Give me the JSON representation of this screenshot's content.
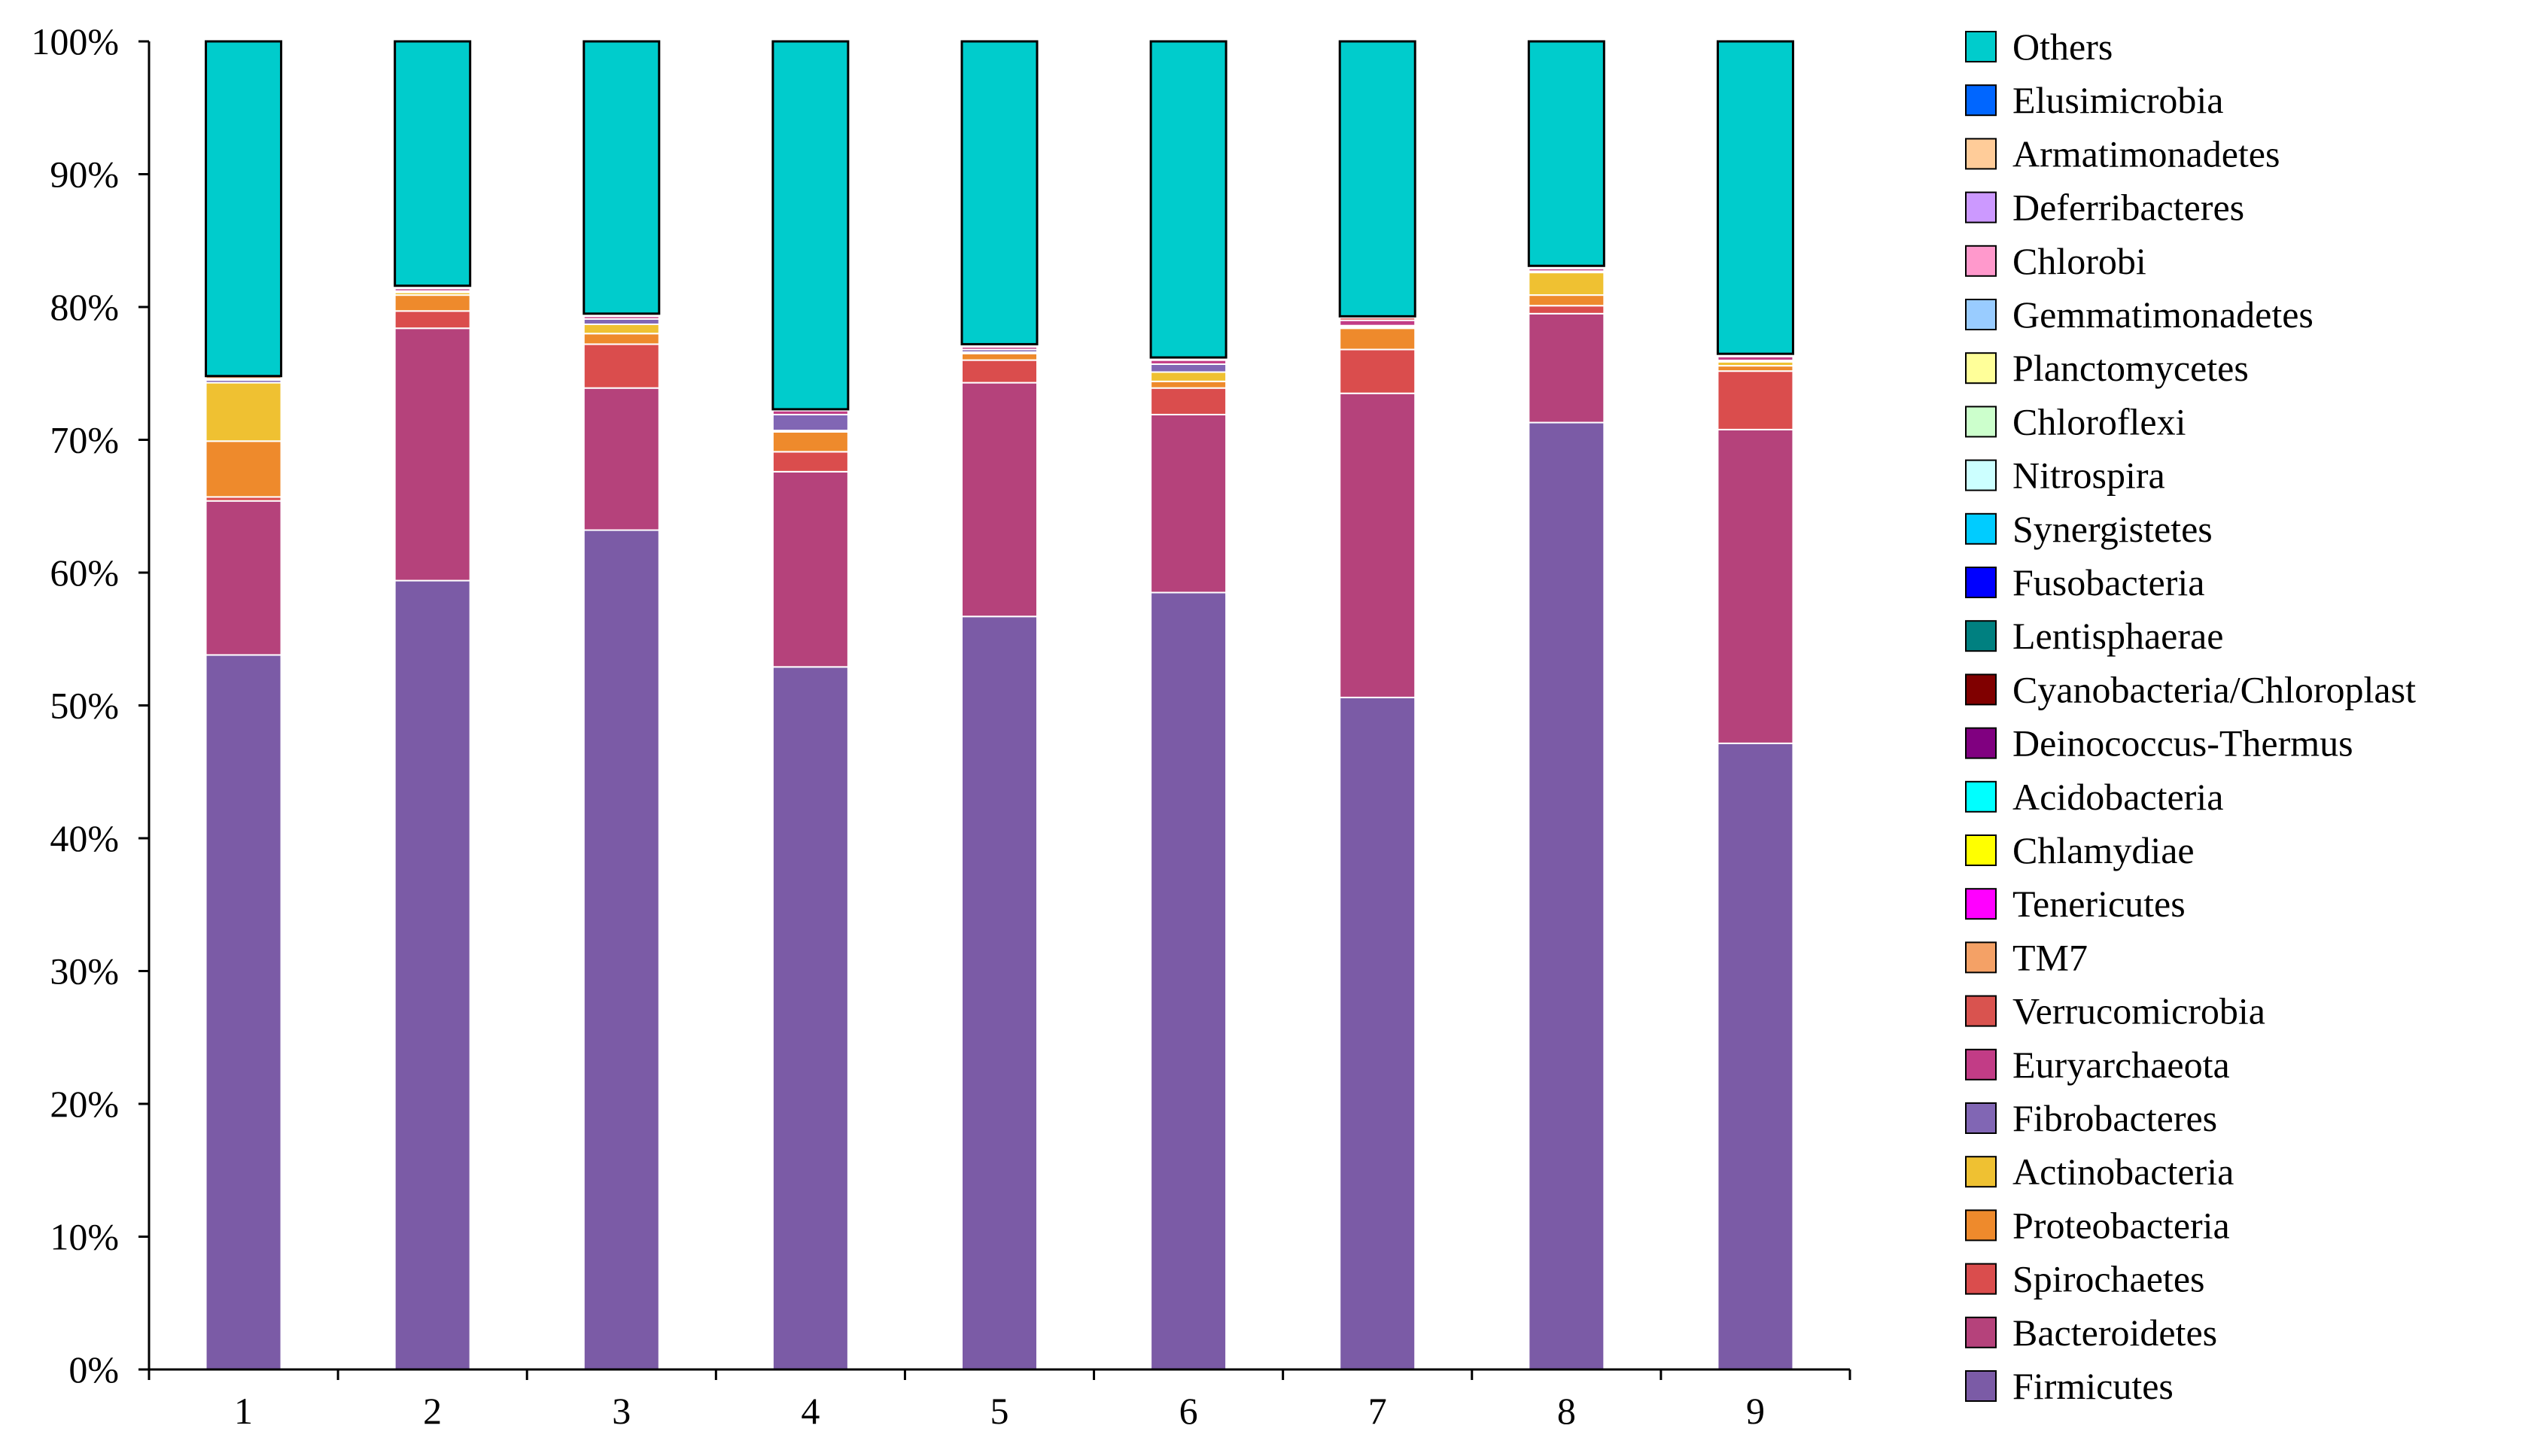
{
  "chart_data": {
    "type": "bar",
    "stacked": true,
    "normalized": true,
    "title": "",
    "xlabel": "",
    "ylabel": "",
    "ylim": [
      0,
      100
    ],
    "y_ticks": [
      "0%",
      "10%",
      "20%",
      "30%",
      "40%",
      "50%",
      "60%",
      "70%",
      "80%",
      "90%",
      "100%"
    ],
    "y_tick_values": [
      0,
      10,
      20,
      30,
      40,
      50,
      60,
      70,
      80,
      90,
      100
    ],
    "categories": [
      "1",
      "2",
      "3",
      "4",
      "5",
      "6",
      "7",
      "8",
      "9"
    ],
    "legend_position": "right",
    "series": [
      {
        "name": "Firmicutes",
        "color": "#7B5BA6",
        "values": [
          53.8,
          59.4,
          63.2,
          52.9,
          56.7,
          58.5,
          50.6,
          71.3,
          47.1
        ]
      },
      {
        "name": "Bacteroidetes",
        "color": "#B5427B",
        "values": [
          11.6,
          19.0,
          10.7,
          14.7,
          17.6,
          13.4,
          22.9,
          8.2,
          23.6
        ]
      },
      {
        "name": "Spirochaetes",
        "color": "#DA4D4D",
        "values": [
          0.3,
          1.3,
          3.3,
          1.5,
          1.7,
          2.0,
          3.3,
          0.6,
          4.4
        ]
      },
      {
        "name": "Proteobacteria",
        "color": "#EE8A2C",
        "values": [
          4.2,
          1.2,
          0.8,
          1.5,
          0.5,
          0.5,
          1.6,
          0.8,
          0.4
        ]
      },
      {
        "name": "Actinobacteria",
        "color": "#EFC132",
        "values": [
          4.4,
          0.2,
          0.7,
          0.1,
          0.1,
          0.7,
          0.1,
          1.7,
          0.3
        ]
      },
      {
        "name": "Fibrobacteres",
        "color": "#8166B4",
        "values": [
          0.2,
          0.1,
          0.4,
          1.2,
          0.2,
          0.6,
          0.1,
          0.1,
          0.1
        ]
      },
      {
        "name": "Euryarchaeota",
        "color": "#C23C86",
        "values": [
          0.1,
          0.2,
          0.2,
          0.3,
          0.2,
          0.3,
          0.4,
          0.2,
          0.3
        ]
      },
      {
        "name": "Verrucomicrobia",
        "color": "#D9534F",
        "values": [
          0.0,
          0.1,
          0.1,
          0.0,
          0.1,
          0.1,
          0.2,
          0.1,
          0.1
        ]
      },
      {
        "name": "TM7",
        "color": "#F4A166",
        "values": [
          0.2,
          0.1,
          0.1,
          0.1,
          0.1,
          0.1,
          0.1,
          0.1,
          0.1
        ]
      },
      {
        "name": "Tenericutes",
        "color": "#FF00FF",
        "values": [
          0.0,
          0.0,
          0.0,
          0.0,
          0.0,
          0.0,
          0.0,
          0.0,
          0.0
        ]
      },
      {
        "name": "Chlamydiae",
        "color": "#FFFF00",
        "values": [
          0.0,
          0.0,
          0.0,
          0.0,
          0.0,
          0.0,
          0.0,
          0.0,
          0.0
        ]
      },
      {
        "name": "Acidobacteria",
        "color": "#00FFFF",
        "values": [
          0.0,
          0.0,
          0.0,
          0.0,
          0.0,
          0.0,
          0.0,
          0.0,
          0.0
        ]
      },
      {
        "name": "Deinococcus-Thermus",
        "color": "#800080",
        "values": [
          0.0,
          0.0,
          0.0,
          0.0,
          0.0,
          0.0,
          0.0,
          0.0,
          0.0
        ]
      },
      {
        "name": "Cyanobacteria/Chloroplast",
        "color": "#800000",
        "values": [
          0.0,
          0.0,
          0.0,
          0.0,
          0.0,
          0.0,
          0.0,
          0.0,
          0.0
        ]
      },
      {
        "name": "Lentisphaerae",
        "color": "#008080",
        "values": [
          0.0,
          0.0,
          0.0,
          0.0,
          0.0,
          0.0,
          0.0,
          0.0,
          0.0
        ]
      },
      {
        "name": "Fusobacteria",
        "color": "#0000FF",
        "values": [
          0.0,
          0.0,
          0.0,
          0.0,
          0.0,
          0.0,
          0.0,
          0.0,
          0.0
        ]
      },
      {
        "name": "Synergistetes",
        "color": "#00CCFF",
        "values": [
          0.0,
          0.0,
          0.0,
          0.0,
          0.0,
          0.0,
          0.0,
          0.0,
          0.0
        ]
      },
      {
        "name": "Nitrospira",
        "color": "#CCFFFF",
        "values": [
          0.0,
          0.0,
          0.0,
          0.0,
          0.0,
          0.0,
          0.0,
          0.0,
          0.0
        ]
      },
      {
        "name": "Chloroflexi",
        "color": "#CCFFCC",
        "values": [
          0.0,
          0.0,
          0.0,
          0.0,
          0.0,
          0.0,
          0.0,
          0.0,
          0.0
        ]
      },
      {
        "name": "Planctomycetes",
        "color": "#FFFF99",
        "values": [
          0.0,
          0.0,
          0.0,
          0.0,
          0.0,
          0.0,
          0.0,
          0.0,
          0.0
        ]
      },
      {
        "name": "Gemmatimonadetes",
        "color": "#99CCFF",
        "values": [
          0.0,
          0.0,
          0.0,
          0.0,
          0.0,
          0.0,
          0.0,
          0.0,
          0.0
        ]
      },
      {
        "name": "Chlorobi",
        "color": "#FF99CC",
        "values": [
          0.0,
          0.0,
          0.0,
          0.0,
          0.0,
          0.0,
          0.0,
          0.0,
          0.0
        ]
      },
      {
        "name": "Deferribacteres",
        "color": "#CC99FF",
        "values": [
          0.0,
          0.0,
          0.0,
          0.0,
          0.0,
          0.0,
          0.0,
          0.0,
          0.0
        ]
      },
      {
        "name": "Armatimonadetes",
        "color": "#FFCC99",
        "values": [
          0.0,
          0.0,
          0.0,
          0.0,
          0.0,
          0.0,
          0.0,
          0.0,
          0.0
        ]
      },
      {
        "name": "Elusimicrobia",
        "color": "#0066FF",
        "values": [
          0.0,
          0.0,
          0.0,
          0.0,
          0.0,
          0.0,
          0.0,
          0.0,
          0.0
        ]
      },
      {
        "name": "Others",
        "color": "#00CCCC",
        "values": [
          25.2,
          18.4,
          20.5,
          27.7,
          22.8,
          23.8,
          20.7,
          16.9,
          23.5
        ]
      }
    ]
  }
}
